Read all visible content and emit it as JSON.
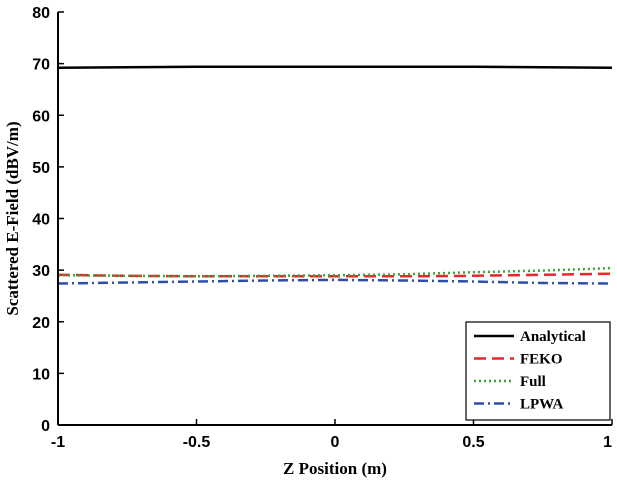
{
  "chart_data": {
    "type": "line",
    "title": "",
    "xlabel": "Z Position (m)",
    "ylabel": "Scattered E-Field (dBV/m)",
    "xlim": [
      -1,
      1
    ],
    "ylim": [
      0,
      80
    ],
    "xticks": [
      "-1",
      "-0.5",
      "0",
      "0.5",
      "1"
    ],
    "yticks": [
      "0",
      "10",
      "20",
      "30",
      "40",
      "50",
      "60",
      "70",
      "80"
    ],
    "grid": false,
    "legend_position": "bottom-right",
    "x": [
      -1,
      -0.75,
      -0.5,
      -0.25,
      0,
      0.25,
      0.5,
      0.75,
      1
    ],
    "series": [
      {
        "name": "Analytical",
        "color": "#000000",
        "dash": "solid",
        "values": [
          69.2,
          69.3,
          69.4,
          69.4,
          69.4,
          69.4,
          69.4,
          69.3,
          69.2
        ]
      },
      {
        "name": "FEKO",
        "color": "#e8262b",
        "dash": "dash",
        "values": [
          29.1,
          28.9,
          28.8,
          28.8,
          28.8,
          28.8,
          28.9,
          29.1,
          29.3
        ]
      },
      {
        "name": "Full",
        "color": "#3aa33a",
        "dash": "dot",
        "values": [
          29.0,
          28.9,
          28.8,
          28.9,
          29.0,
          29.2,
          29.6,
          29.9,
          30.4
        ]
      },
      {
        "name": "LPWA",
        "color": "#2b4fa8",
        "dash": "dashdot",
        "values": [
          27.4,
          27.6,
          27.8,
          28.0,
          28.1,
          28.0,
          27.8,
          27.5,
          27.4
        ]
      }
    ]
  }
}
